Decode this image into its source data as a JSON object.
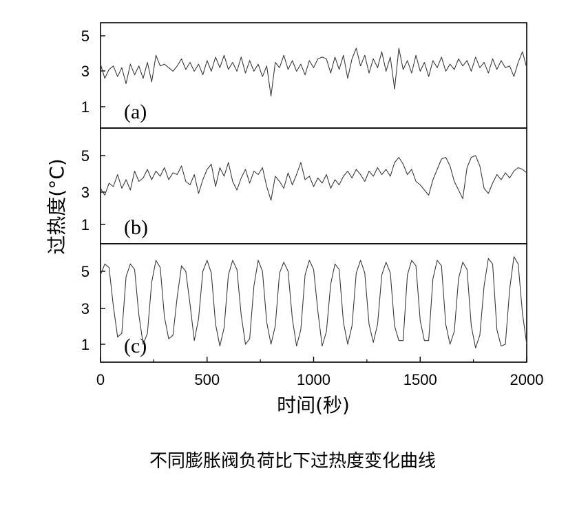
{
  "caption": "不同膨胀阀负荷比下过热度变化曲线",
  "chart_data": {
    "type": "line",
    "xlabel": "时间(秒)",
    "ylabel": "过热度(°C)",
    "xlim": [
      0,
      2000
    ],
    "x_ticks": [
      "0",
      "500",
      "1000",
      "1500",
      "2000"
    ],
    "line_color": "#3a3a3a",
    "panels": [
      {
        "label": "(a)",
        "ylim": [
          0,
          6
        ],
        "y_ticks": [
          "1",
          "3",
          "5"
        ],
        "x": [
          0,
          20,
          40,
          60,
          80,
          100,
          120,
          140,
          160,
          180,
          200,
          220,
          240,
          260,
          280,
          300,
          320,
          340,
          360,
          380,
          400,
          420,
          440,
          460,
          480,
          500,
          520,
          540,
          560,
          580,
          600,
          620,
          640,
          660,
          680,
          700,
          720,
          740,
          760,
          780,
          800,
          820,
          840,
          860,
          880,
          900,
          920,
          940,
          960,
          980,
          1000,
          1020,
          1040,
          1060,
          1080,
          1100,
          1120,
          1140,
          1160,
          1180,
          1200,
          1220,
          1240,
          1260,
          1280,
          1300,
          1320,
          1340,
          1360,
          1380,
          1400,
          1420,
          1440,
          1460,
          1480,
          1500,
          1520,
          1540,
          1560,
          1580,
          1600,
          1620,
          1640,
          1660,
          1680,
          1700,
          1720,
          1740,
          1760,
          1780,
          1800,
          1820,
          1840,
          1860,
          1880,
          1900,
          1920,
          1940,
          1960,
          1980,
          2000
        ],
        "values": [
          3.4,
          2.6,
          3.1,
          3.3,
          2.7,
          3.2,
          2.3,
          3.4,
          2.8,
          3.3,
          2.6,
          3.5,
          2.4,
          3.9,
          3.3,
          3.4,
          3.2,
          3.0,
          3.3,
          3.7,
          3.1,
          3.5,
          3.0,
          3.4,
          2.8,
          3.6,
          3.0,
          3.8,
          3.2,
          3.9,
          3.1,
          3.5,
          3.0,
          3.8,
          2.9,
          3.6,
          3.0,
          3.4,
          2.7,
          3.3,
          1.6,
          3.5,
          3.2,
          3.9,
          3.1,
          3.6,
          3.0,
          3.4,
          2.8,
          3.6,
          3.2,
          3.7,
          3.8,
          3.7,
          2.9,
          3.8,
          3.1,
          3.9,
          2.6,
          3.7,
          4.3,
          3.3,
          3.9,
          2.9,
          3.7,
          3.2,
          4.1,
          3.0,
          3.8,
          2.0,
          4.3,
          3.1,
          3.6,
          2.9,
          3.9,
          3.0,
          3.5,
          2.7,
          3.6,
          3.2,
          3.8,
          3.0,
          3.4,
          3.1,
          3.7,
          3.3,
          3.6,
          3.0,
          3.8,
          3.2,
          3.5,
          2.9,
          3.7,
          3.1,
          3.6,
          3.2,
          3.3,
          2.7,
          3.5,
          4.1,
          3.2
        ]
      },
      {
        "label": "(b)",
        "ylim": [
          0,
          6
        ],
        "y_ticks": [
          "1",
          "3",
          "5"
        ],
        "x": [
          0,
          20,
          40,
          60,
          80,
          100,
          120,
          140,
          160,
          180,
          200,
          220,
          240,
          260,
          280,
          300,
          320,
          340,
          360,
          380,
          400,
          420,
          440,
          460,
          480,
          500,
          520,
          540,
          560,
          580,
          600,
          620,
          640,
          660,
          680,
          700,
          720,
          740,
          760,
          780,
          800,
          820,
          840,
          860,
          880,
          900,
          920,
          940,
          960,
          980,
          1000,
          1020,
          1040,
          1060,
          1080,
          1100,
          1120,
          1140,
          1160,
          1180,
          1200,
          1220,
          1240,
          1260,
          1280,
          1300,
          1320,
          1340,
          1360,
          1380,
          1400,
          1420,
          1440,
          1460,
          1480,
          1500,
          1520,
          1540,
          1560,
          1580,
          1600,
          1620,
          1640,
          1660,
          1680,
          1700,
          1720,
          1740,
          1760,
          1780,
          1800,
          1820,
          1840,
          1860,
          1880,
          1900,
          1920,
          1940,
          1960,
          1980,
          2000
        ],
        "values": [
          3.1,
          2.7,
          3.4,
          3.2,
          3.9,
          3.1,
          3.6,
          3.0,
          4.1,
          3.5,
          3.7,
          4.2,
          3.6,
          4.1,
          3.8,
          4.3,
          3.6,
          4.0,
          3.9,
          4.4,
          3.5,
          3.3,
          3.9,
          2.8,
          3.6,
          4.2,
          4.5,
          3.2,
          4.3,
          3.8,
          4.6,
          3.5,
          3.0,
          3.7,
          4.2,
          3.4,
          4.1,
          3.9,
          4.3,
          3.2,
          2.4,
          3.8,
          3.5,
          3.1,
          4.0,
          3.3,
          3.9,
          4.6,
          3.6,
          3.8,
          3.2,
          3.7,
          3.4,
          3.9,
          3.1,
          3.6,
          3.3,
          3.8,
          4.1,
          3.7,
          4.2,
          3.9,
          3.5,
          4.1,
          3.8,
          4.3,
          3.9,
          4.2,
          3.8,
          4.6,
          4.9,
          4.5,
          3.9,
          4.2,
          3.5,
          3.3,
          3.0,
          2.7,
          3.6,
          4.2,
          4.8,
          4.9,
          4.4,
          3.5,
          3.0,
          2.5,
          4.3,
          4.9,
          5.0,
          4.4,
          3.1,
          2.8,
          3.4,
          3.9,
          3.6,
          4.0,
          3.7,
          4.1,
          4.3,
          4.2,
          4.0
        ]
      },
      {
        "label": "(c)",
        "ylim": [
          0,
          6
        ],
        "y_ticks": [
          "1",
          "3",
          "5"
        ],
        "x": [
          0,
          20,
          40,
          60,
          80,
          100,
          120,
          140,
          160,
          180,
          200,
          220,
          240,
          260,
          280,
          300,
          320,
          340,
          360,
          380,
          400,
          420,
          440,
          460,
          480,
          500,
          520,
          540,
          560,
          580,
          600,
          620,
          640,
          660,
          680,
          700,
          720,
          740,
          760,
          780,
          800,
          820,
          840,
          860,
          880,
          900,
          920,
          940,
          960,
          980,
          1000,
          1020,
          1040,
          1060,
          1080,
          1100,
          1120,
          1140,
          1160,
          1180,
          1200,
          1220,
          1240,
          1260,
          1280,
          1300,
          1320,
          1340,
          1360,
          1380,
          1400,
          1420,
          1440,
          1460,
          1480,
          1500,
          1520,
          1540,
          1560,
          1580,
          1600,
          1620,
          1640,
          1660,
          1680,
          1700,
          1720,
          1740,
          1760,
          1780,
          1800,
          1820,
          1840,
          1860,
          1880,
          1900,
          1920,
          1940,
          1960,
          1980,
          2000
        ],
        "values": [
          4.8,
          5.4,
          5.2,
          3.1,
          1.4,
          1.6,
          4.7,
          5.4,
          5.1,
          2.6,
          1.0,
          1.6,
          4.4,
          5.6,
          5.2,
          2.5,
          1.3,
          1.5,
          3.6,
          5.3,
          5.0,
          3.2,
          1.2,
          2.4,
          5.0,
          5.6,
          4.9,
          2.1,
          0.9,
          1.9,
          4.8,
          5.6,
          5.1,
          2.6,
          1.0,
          1.3,
          4.2,
          5.6,
          5.0,
          2.2,
          1.0,
          2.0,
          4.9,
          5.5,
          5.0,
          2.4,
          0.9,
          1.8,
          4.8,
          5.6,
          5.1,
          2.8,
          0.9,
          1.7,
          4.3,
          5.4,
          5.1,
          2.2,
          1.0,
          2.0,
          4.9,
          5.6,
          4.9,
          2.1,
          1.1,
          2.1,
          4.8,
          5.5,
          4.9,
          2.0,
          1.2,
          1.2,
          4.8,
          5.6,
          5.3,
          2.3,
          1.2,
          1.2,
          4.6,
          5.6,
          5.3,
          2.1,
          1.0,
          1.7,
          4.6,
          5.5,
          5.1,
          2.0,
          0.8,
          1.5,
          4.2,
          5.7,
          5.4,
          1.8,
          0.9,
          1.0,
          4.0,
          5.8,
          5.4,
          2.7,
          1.0
        ]
      }
    ]
  }
}
